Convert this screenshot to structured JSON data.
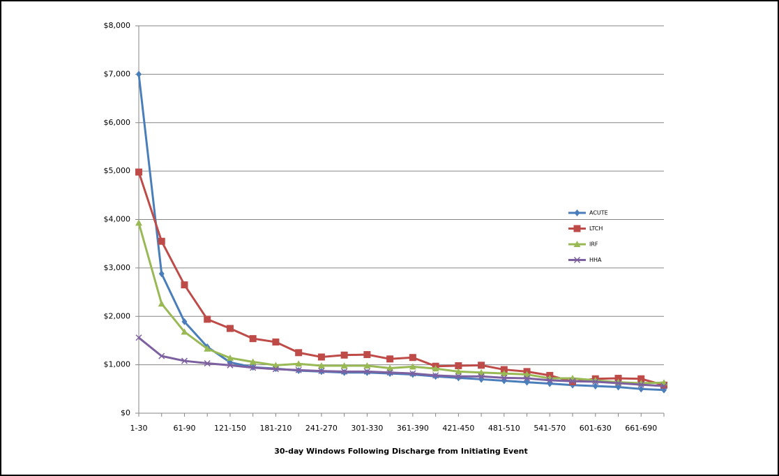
{
  "chart_data": {
    "type": "line",
    "x_label": "30-day Windows Following Discharge  from Initiating Event",
    "categories": [
      "1-30",
      null,
      "61-90",
      null,
      "121-150",
      null,
      "181-210",
      null,
      "241-270",
      null,
      "301-330",
      null,
      "361-390",
      null,
      "421-450",
      null,
      "481-510",
      null,
      "541-570",
      null,
      "601-630",
      null,
      "661-690",
      null
    ],
    "series": [
      {
        "name": "ACUTE",
        "color": "#4a7ebb",
        "marker": "diamond",
        "values": [
          7000,
          2880,
          1890,
          1370,
          1050,
          950,
          920,
          880,
          860,
          840,
          840,
          820,
          800,
          760,
          730,
          700,
          670,
          640,
          610,
          580,
          560,
          540,
          500,
          480
        ]
      },
      {
        "name": "LTCH",
        "color": "#be4b48",
        "marker": "square",
        "values": [
          4980,
          3550,
          2650,
          1940,
          1750,
          1540,
          1470,
          1250,
          1160,
          1200,
          1210,
          1120,
          1150,
          970,
          980,
          990,
          900,
          860,
          780,
          650,
          710,
          720,
          710,
          580
        ]
      },
      {
        "name": "IRF",
        "color": "#98b954",
        "marker": "triangle",
        "values": [
          3930,
          2260,
          1680,
          1330,
          1140,
          1060,
          990,
          1020,
          980,
          980,
          980,
          930,
          960,
          920,
          860,
          840,
          820,
          800,
          720,
          720,
          680,
          640,
          620,
          630
        ]
      },
      {
        "name": "HHA",
        "color": "#7d60a0",
        "marker": "x",
        "values": [
          1560,
          1180,
          1080,
          1030,
          990,
          940,
          910,
          890,
          870,
          860,
          860,
          840,
          820,
          780,
          760,
          760,
          730,
          720,
          680,
          660,
          650,
          620,
          590,
          560
        ]
      }
    ],
    "ylim": [
      0,
      8000
    ],
    "yticks": [
      {
        "value": 0,
        "label": "$0"
      },
      {
        "value": 1000,
        "label": "$1,000"
      },
      {
        "value": 2000,
        "label": "$2,000"
      },
      {
        "value": 3000,
        "label": "$3,000"
      },
      {
        "value": 4000,
        "label": "$4,000"
      },
      {
        "value": 5000,
        "label": "$5,000"
      },
      {
        "value": 6000,
        "label": "$6,000"
      },
      {
        "value": 7000,
        "label": "$7,000"
      },
      {
        "value": 8000,
        "label": "$8,000"
      }
    ],
    "grid": true,
    "legend": "right"
  }
}
